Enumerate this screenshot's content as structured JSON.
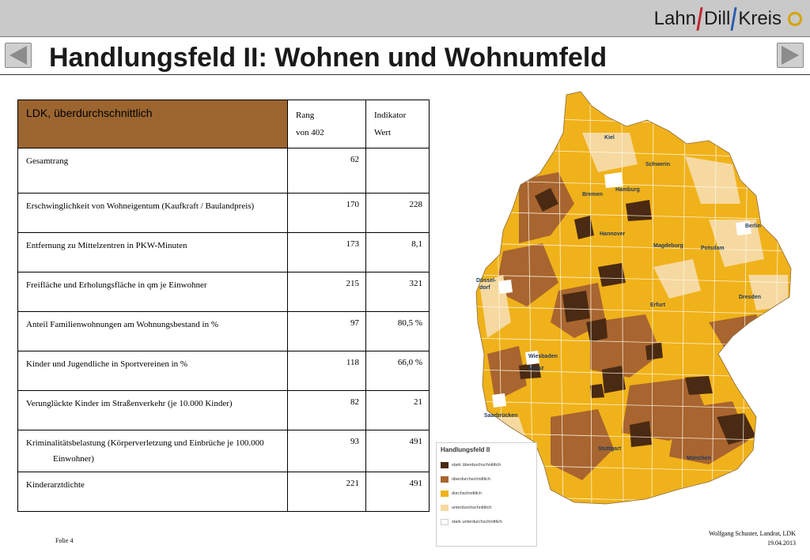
{
  "header": {
    "logo": {
      "part1": "Lahn",
      "part2": "Dill",
      "part3": "Kreis"
    },
    "title": "Handlungsfeld II: Wohnen und Wohnumfeld"
  },
  "table": {
    "header_left": "LDK, überdurchschnittlich",
    "col_rank_line1": "Rang",
    "col_rank_line2": "von 402",
    "col_ind_line1": "Indikator",
    "col_ind_line2": "Wert",
    "rows": [
      {
        "label": "Gesamtrang",
        "rank": "62",
        "value": ""
      },
      {
        "label": "Erschwinglichkeit von Wohneigentum (Kaufkraft / Baulandpreis)",
        "rank": "170",
        "value": "228"
      },
      {
        "label": "Entfernung zu Mittelzentren in PKW-Minuten",
        "rank": "173",
        "value": "8,1"
      },
      {
        "label": "Freifläche und Erholungsfläche in qm je Einwohner",
        "rank": "215",
        "value": "321"
      },
      {
        "label": "Anteil Familienwohnungen am Wohnungsbestand in %",
        "rank": "97",
        "value": "80,5 %"
      },
      {
        "label": "Kinder und Jugendliche in Sportvereinen in %",
        "rank": "118",
        "value": "66,0 %"
      },
      {
        "label": "Verunglückte Kinder im Straßenverkehr (je 10.000 Kinder)",
        "rank": "82",
        "value": "21"
      },
      {
        "label": "Kriminalitätsbelastung (Körperverletzung und Einbrüche je 100.000",
        "label2": "Einwohner)",
        "rank": "93",
        "value": "491"
      },
      {
        "label": "Kinderarztdichte",
        "rank": "221",
        "value": "491"
      }
    ]
  },
  "map": {
    "cities": [
      "Kiel",
      "Schwerin",
      "Hamburg",
      "Bremen",
      "Berlin",
      "Hannover",
      "Potsdam",
      "Magdeburg",
      "Düssel-",
      "dorf",
      "Erfurt",
      "Dresden",
      "Wiesbaden",
      "Mainz",
      "Saarbrücken",
      "Stuttgart",
      "München"
    ],
    "legend": {
      "title": "Handlungsfeld II",
      "items": [
        {
          "label": "stark überdurchschnittlich",
          "color": "#4a2a12"
        },
        {
          "label": "überdurchschnittlich",
          "color": "#a8652f"
        },
        {
          "label": "durchschnittlich",
          "color": "#f0b21a"
        },
        {
          "label": "unterdurchschnittlich",
          "color": "#f6d9a0"
        },
        {
          "label": "stark unterdurchschnittlich",
          "color": "#ffffff"
        }
      ]
    }
  },
  "footer": {
    "slide": "Folie 4",
    "author": "Wolfgang Schuster, Landrat, LDK",
    "date": "19.04.2013"
  }
}
